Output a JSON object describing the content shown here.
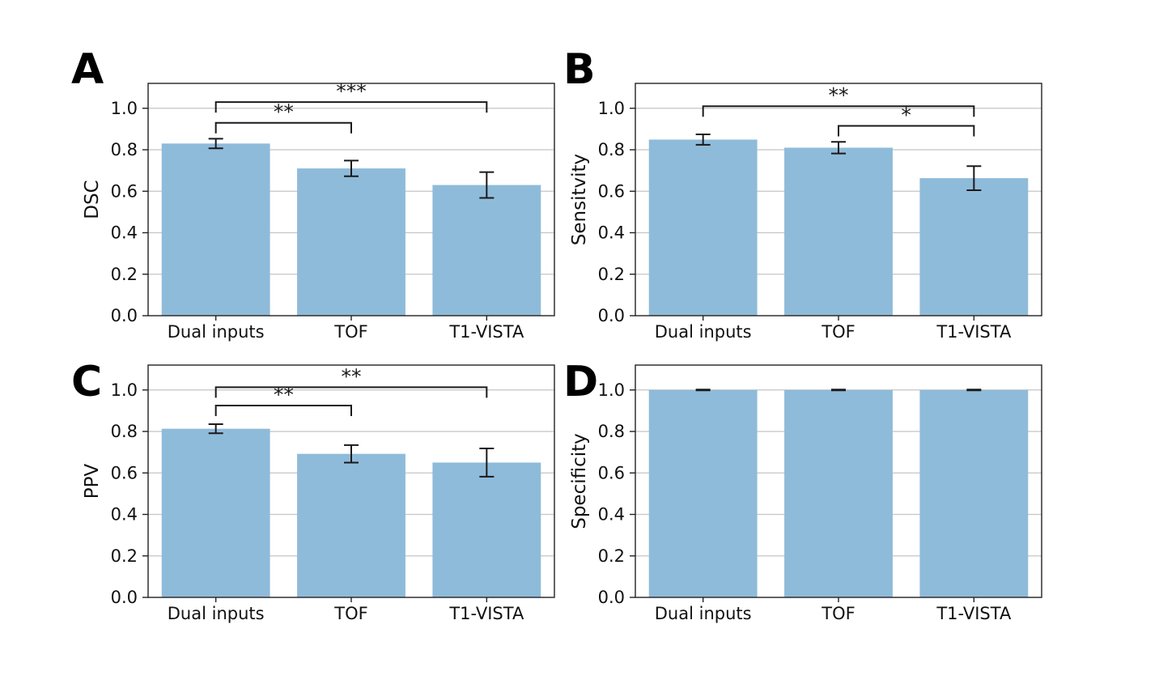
{
  "figure": {
    "bar_color": "#8fbbda",
    "error_color": "#1a1a1a",
    "grid_color": "#c4c4c4",
    "spine_color": "#222222",
    "annotation_color": "#1a1a1a",
    "text_color": "#111111",
    "background": "#ffffff"
  },
  "chart_data": [
    {
      "type": "bar",
      "panel": "A",
      "ylabel": "DSC",
      "xlabel": "",
      "categories": [
        "Dual inputs",
        "TOF",
        "T1-VISTA"
      ],
      "values": [
        0.83,
        0.71,
        0.63
      ],
      "errors": [
        0.023,
        0.038,
        0.062
      ],
      "yticks": [
        0.0,
        0.2,
        0.4,
        0.6,
        0.8,
        1.0
      ],
      "ylim": [
        0,
        1.12
      ],
      "grid": true,
      "significance": [
        {
          "from": 0,
          "to": 1,
          "label": "**",
          "y": 0.93
        },
        {
          "from": 0,
          "to": 2,
          "label": "***",
          "y": 1.03
        }
      ]
    },
    {
      "type": "bar",
      "panel": "B",
      "ylabel": "Sensitvity",
      "xlabel": "",
      "categories": [
        "Dual inputs",
        "TOF",
        "T1-VISTA"
      ],
      "values": [
        0.849,
        0.81,
        0.663
      ],
      "errors": [
        0.025,
        0.028,
        0.058
      ],
      "yticks": [
        0.0,
        0.2,
        0.4,
        0.6,
        0.8,
        1.0
      ],
      "ylim": [
        0,
        1.12
      ],
      "grid": true,
      "significance": [
        {
          "from": 0,
          "to": 2,
          "label": "**",
          "y": 1.01
        },
        {
          "from": 1,
          "to": 2,
          "label": "*",
          "y": 0.915
        }
      ]
    },
    {
      "type": "bar",
      "panel": "C",
      "ylabel": "PPV",
      "xlabel": "",
      "categories": [
        "Dual inputs",
        "TOF",
        "T1-VISTA"
      ],
      "values": [
        0.813,
        0.692,
        0.65
      ],
      "errors": [
        0.022,
        0.042,
        0.068
      ],
      "yticks": [
        0.0,
        0.2,
        0.4,
        0.6,
        0.8,
        1.0
      ],
      "ylim": [
        0,
        1.12
      ],
      "grid": true,
      "significance": [
        {
          "from": 0,
          "to": 1,
          "label": "**",
          "y": 0.925
        },
        {
          "from": 0,
          "to": 2,
          "label": "**",
          "y": 1.013
        }
      ]
    },
    {
      "type": "bar",
      "panel": "D",
      "ylabel": "Specificity",
      "xlabel": "",
      "categories": [
        "Dual inputs",
        "TOF",
        "T1-VISTA"
      ],
      "values": [
        1.0,
        1.0,
        1.0
      ],
      "errors": [
        0.002,
        0.002,
        0.002
      ],
      "yticks": [
        0.0,
        0.2,
        0.4,
        0.6,
        0.8,
        1.0
      ],
      "ylim": [
        0,
        1.12
      ],
      "grid": true,
      "significance": []
    }
  ]
}
